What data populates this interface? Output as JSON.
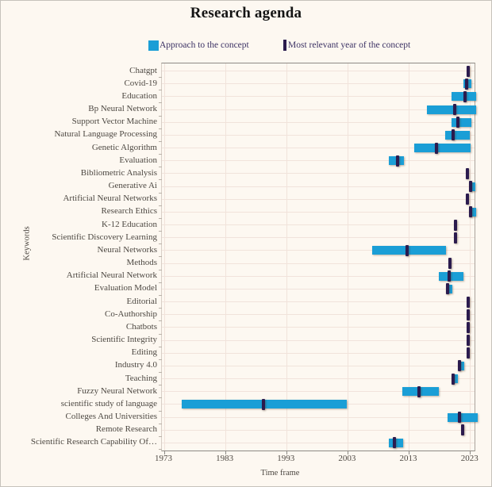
{
  "title": "Research agenda",
  "legend": {
    "approach": {
      "label": "Approach to the concept",
      "color": "#1a9ed6"
    },
    "relevant_year": {
      "label": "Most relevant year of the concept",
      "color": "#2b1b4e"
    }
  },
  "axes": {
    "x_label": "Time frame",
    "y_label": "Keywords"
  },
  "chart_data": {
    "type": "bar",
    "subtype": "horizontal-interval-gantt",
    "title": "Research agenda",
    "xlabel": "Time frame",
    "ylabel": "Keywords",
    "xlim": [
      1973,
      2024.5
    ],
    "x_ticks": [
      1973,
      1983,
      1993,
      2003,
      2013,
      2023
    ],
    "grid": true,
    "legend_position": "top",
    "series": [
      {
        "name": "Approach to the concept",
        "style": "interval-bar",
        "color": "#1a9ed6"
      },
      {
        "name": "Most relevant year of the concept",
        "style": "vertical-marker",
        "color": "#2b1b4e"
      }
    ],
    "rows": [
      {
        "keyword": "Chatgpt",
        "approach": null,
        "relevant_year": 2022.6
      },
      {
        "keyword": "Covid-19",
        "approach": [
          2021.9,
          2023.2
        ],
        "relevant_year": 2022.4
      },
      {
        "keyword": "Education",
        "approach": [
          2019.9,
          2023.9
        ],
        "relevant_year": 2022.1
      },
      {
        "keyword": "Bp Neural Network",
        "approach": [
          2015.9,
          2023.9
        ],
        "relevant_year": 2020.5
      },
      {
        "keyword": "Support Vector Machine",
        "approach": [
          2019.9,
          2023.2
        ],
        "relevant_year": 2021.0
      },
      {
        "keyword": "Natural Language Processing",
        "approach": [
          2018.9,
          2022.9
        ],
        "relevant_year": 2020.2
      },
      {
        "keyword": "Genetic Algorithm",
        "approach": [
          2013.8,
          2023.1
        ],
        "relevant_year": 2017.4
      },
      {
        "keyword": "Evaluation",
        "approach": [
          2009.7,
          2012.1
        ],
        "relevant_year": 2011.1
      },
      {
        "keyword": "Bibliometric Analysis",
        "approach": null,
        "relevant_year": 2022.5
      },
      {
        "keyword": "Generative Ai",
        "approach": [
          2022.8,
          2023.8
        ],
        "relevant_year": 2023.0
      },
      {
        "keyword": "Artificial Neural Networks",
        "approach": null,
        "relevant_year": 2022.5
      },
      {
        "keyword": "Research Ethics",
        "approach": [
          2022.8,
          2023.9
        ],
        "relevant_year": 2023.0
      },
      {
        "keyword": "K-12 Education",
        "approach": null,
        "relevant_year": 2020.6
      },
      {
        "keyword": "Scientific Discovery Learning",
        "approach": null,
        "relevant_year": 2020.6
      },
      {
        "keyword": "Neural Networks",
        "approach": [
          2006.9,
          2019.0
        ],
        "relevant_year": 2012.7
      },
      {
        "keyword": "Methods",
        "approach": null,
        "relevant_year": 2019.7
      },
      {
        "keyword": "Artificial Neural Network",
        "approach": [
          2017.8,
          2021.9
        ],
        "relevant_year": 2019.6
      },
      {
        "keyword": "Evaluation Model",
        "approach": [
          2019.0,
          2020.1
        ],
        "relevant_year": 2019.3
      },
      {
        "keyword": "Editorial",
        "approach": null,
        "relevant_year": 2022.6
      },
      {
        "keyword": "Co-Authorship",
        "approach": null,
        "relevant_year": 2022.6
      },
      {
        "keyword": "Chatbots",
        "approach": null,
        "relevant_year": 2022.6
      },
      {
        "keyword": "Scientific Integrity",
        "approach": null,
        "relevant_year": 2022.6
      },
      {
        "keyword": "Editing",
        "approach": null,
        "relevant_year": 2022.6
      },
      {
        "keyword": "Industry 4.0",
        "approach": [
          2020.9,
          2022.0
        ],
        "relevant_year": 2021.2
      },
      {
        "keyword": "Teaching",
        "approach": [
          2019.9,
          2021.0
        ],
        "relevant_year": 2020.2
      },
      {
        "keyword": "Fuzzy Neural Network",
        "approach": [
          2011.9,
          2017.9
        ],
        "relevant_year": 2014.6
      },
      {
        "keyword": "scientific study of language",
        "approach": [
          1975.8,
          2002.8
        ],
        "relevant_year": 1989.2
      },
      {
        "keyword": "Colleges And Universities",
        "approach": [
          2019.3,
          2024.2
        ],
        "relevant_year": 2021.2
      },
      {
        "keyword": "Remote Research",
        "approach": null,
        "relevant_year": 2021.7
      },
      {
        "keyword": "Scientific Research Capability Of…",
        "approach": [
          2009.7,
          2012.0
        ],
        "relevant_year": 2010.6
      }
    ]
  }
}
